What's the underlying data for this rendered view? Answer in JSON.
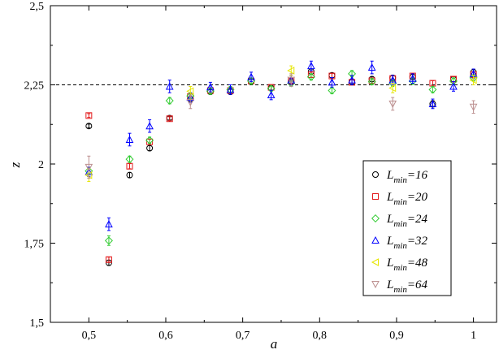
{
  "chart_data": {
    "type": "scatter",
    "xlabel": "a",
    "ylabel": "z",
    "xlim": [
      0.45,
      1.03
    ],
    "ylim": [
      1.5,
      2.5
    ],
    "x_ticks": [
      0.5,
      0.6,
      0.7,
      0.8,
      0.9,
      1.0
    ],
    "x_tick_labels": [
      "0,5",
      "0,6",
      "0,7",
      "0,8",
      "0,9",
      "1"
    ],
    "y_ticks": [
      1.5,
      1.75,
      2.0,
      2.25,
      2.5
    ],
    "y_tick_labels": [
      "1,5",
      "1,75",
      "2",
      "2,25",
      "2,5"
    ],
    "reference_line": {
      "y": 2.25,
      "style": "dashed"
    },
    "legend_position": "bottom-right",
    "series": [
      {
        "name": "L_min=16",
        "legend_main": "L",
        "legend_sub": "min",
        "legend_rest": "=16",
        "marker": "circle",
        "color": "#000000",
        "points": [
          [
            0.5,
            2.12,
            0.006
          ],
          [
            0.526,
            1.688,
            0.008
          ],
          [
            0.553,
            1.965,
            0.008
          ],
          [
            0.579,
            2.05,
            0.008
          ],
          [
            0.605,
            2.145,
            0.006
          ],
          [
            0.632,
            2.205,
            0.008
          ],
          [
            0.658,
            2.228,
            0.008
          ],
          [
            0.684,
            2.228,
            0.008
          ],
          [
            0.711,
            2.262,
            0.008
          ],
          [
            0.737,
            2.24,
            0.008
          ],
          [
            0.763,
            2.26,
            0.008
          ],
          [
            0.789,
            2.292,
            0.008
          ],
          [
            0.816,
            2.28,
            0.008
          ],
          [
            0.842,
            2.26,
            0.008
          ],
          [
            0.868,
            2.268,
            0.008
          ],
          [
            0.895,
            2.272,
            0.008
          ],
          [
            0.921,
            2.275,
            0.008
          ],
          [
            0.947,
            2.19,
            0.01
          ],
          [
            0.974,
            2.268,
            0.008
          ],
          [
            1.0,
            2.29,
            0.008
          ]
        ]
      },
      {
        "name": "L_min=20",
        "legend_main": "L",
        "legend_sub": "min",
        "legend_rest": "=20",
        "marker": "square",
        "color": "#e31a1c",
        "points": [
          [
            0.5,
            2.153,
            0.006
          ],
          [
            0.526,
            1.698,
            0.008
          ],
          [
            0.553,
            1.993,
            0.008
          ],
          [
            0.579,
            2.07,
            0.008
          ],
          [
            0.605,
            2.143,
            0.006
          ],
          [
            0.632,
            2.213,
            0.008
          ],
          [
            0.658,
            2.232,
            0.008
          ],
          [
            0.684,
            2.232,
            0.008
          ],
          [
            0.711,
            2.262,
            0.008
          ],
          [
            0.737,
            2.242,
            0.008
          ],
          [
            0.763,
            2.262,
            0.008
          ],
          [
            0.789,
            2.282,
            0.008
          ],
          [
            0.816,
            2.278,
            0.008
          ],
          [
            0.842,
            2.258,
            0.008
          ],
          [
            0.868,
            2.263,
            0.008
          ],
          [
            0.895,
            2.27,
            0.008
          ],
          [
            0.921,
            2.278,
            0.008
          ],
          [
            0.947,
            2.255,
            0.008
          ],
          [
            0.974,
            2.268,
            0.008
          ],
          [
            1.0,
            2.282,
            0.008
          ]
        ]
      },
      {
        "name": "L_min=24",
        "legend_main": "L",
        "legend_sub": "min",
        "legend_rest": "=24",
        "marker": "diamond",
        "color": "#33cc33",
        "points": [
          [
            0.5,
            1.978,
            0.01
          ],
          [
            0.526,
            1.758,
            0.015
          ],
          [
            0.553,
            2.015,
            0.01
          ],
          [
            0.579,
            2.075,
            0.01
          ],
          [
            0.605,
            2.2,
            0.01
          ],
          [
            0.632,
            2.215,
            0.01
          ],
          [
            0.658,
            2.23,
            0.01
          ],
          [
            0.684,
            2.235,
            0.01
          ],
          [
            0.711,
            2.262,
            0.01
          ],
          [
            0.737,
            2.238,
            0.008
          ],
          [
            0.763,
            2.255,
            0.01
          ],
          [
            0.789,
            2.275,
            0.01
          ],
          [
            0.816,
            2.232,
            0.01
          ],
          [
            0.842,
            2.285,
            0.01
          ],
          [
            0.868,
            2.26,
            0.01
          ],
          [
            0.895,
            2.255,
            0.01
          ],
          [
            0.921,
            2.262,
            0.01
          ],
          [
            0.947,
            2.235,
            0.01
          ],
          [
            0.974,
            2.262,
            0.01
          ],
          [
            1.0,
            2.272,
            0.01
          ]
        ]
      },
      {
        "name": "L_min=32",
        "legend_main": "L",
        "legend_sub": "min",
        "legend_rest": "=32",
        "marker": "triangle-up",
        "color": "#0000ff",
        "points": [
          [
            0.5,
            1.975,
            0.015
          ],
          [
            0.526,
            1.81,
            0.02
          ],
          [
            0.553,
            2.077,
            0.02
          ],
          [
            0.579,
            2.12,
            0.02
          ],
          [
            0.605,
            2.245,
            0.02
          ],
          [
            0.632,
            2.21,
            0.015
          ],
          [
            0.658,
            2.243,
            0.015
          ],
          [
            0.684,
            2.235,
            0.015
          ],
          [
            0.711,
            2.275,
            0.015
          ],
          [
            0.737,
            2.218,
            0.015
          ],
          [
            0.763,
            2.265,
            0.015
          ],
          [
            0.789,
            2.31,
            0.015
          ],
          [
            0.816,
            2.258,
            0.015
          ],
          [
            0.842,
            2.265,
            0.015
          ],
          [
            0.868,
            2.305,
            0.02
          ],
          [
            0.895,
            2.265,
            0.015
          ],
          [
            0.921,
            2.27,
            0.015
          ],
          [
            0.947,
            2.19,
            0.015
          ],
          [
            0.974,
            2.245,
            0.015
          ],
          [
            1.0,
            2.285,
            0.015
          ]
        ]
      },
      {
        "name": "L_min=48",
        "legend_main": "L",
        "legend_sub": "min",
        "legend_rest": "=48",
        "marker": "triangle-left",
        "color": "#e6e600",
        "points": [
          [
            0.5,
            1.965,
            0.02
          ],
          [
            0.632,
            2.23,
            0.015
          ],
          [
            0.763,
            2.295,
            0.015
          ],
          [
            0.895,
            2.24,
            0.015
          ],
          [
            1.0,
            2.265,
            0.015
          ]
        ]
      },
      {
        "name": "L_min=64",
        "legend_main": "L",
        "legend_sub": "min",
        "legend_rest": "=64",
        "marker": "triangle-down",
        "color": "#bc8f8f",
        "points": [
          [
            0.5,
            1.99,
            0.035
          ],
          [
            0.632,
            2.195,
            0.02
          ],
          [
            0.763,
            2.265,
            0.02
          ],
          [
            0.895,
            2.19,
            0.02
          ],
          [
            1.0,
            2.18,
            0.02
          ]
        ]
      }
    ]
  }
}
